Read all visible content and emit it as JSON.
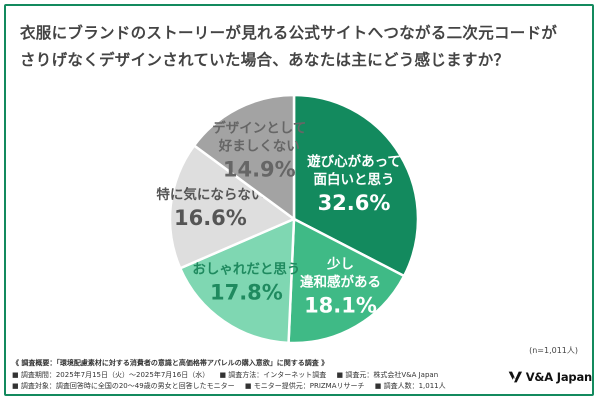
{
  "title": {
    "line1": "衣服にブランドのストーリーが見れる公式サイトへつながる二次元コードが",
    "line2": "さりげなくデザインされていた場合、あなたは主にどう感じますか？"
  },
  "chart_data": {
    "type": "pie",
    "title": "衣服にブランドのストーリーが見れる公式サイトへつながる二次元コードがさりげなくデザインされていた場合、あなたは主にどう感じますか？",
    "unit": "%",
    "slices": [
      {
        "label_lines": [
          "遊び心があって",
          "面白いと思う"
        ],
        "value": 32.6,
        "value_text": "32.6%",
        "color": "#138a5e",
        "label_color": "#ffffff"
      },
      {
        "label_lines": [
          "少し",
          "違和感がある"
        ],
        "value": 18.1,
        "value_text": "18.1%",
        "color": "#3fba86",
        "label_color": "#ffffff"
      },
      {
        "label_lines": [
          "おしゃれだと思う"
        ],
        "value": 17.8,
        "value_text": "17.8%",
        "color": "#7fd7b2",
        "label_color": "#1f8a5f"
      },
      {
        "label_lines": [
          "特に気にならない"
        ],
        "value": 16.6,
        "value_text": "16.6%",
        "color": "#dedede",
        "label_color": "#555555"
      },
      {
        "label_lines": [
          "デザインとして",
          "好ましくない"
        ],
        "value": 14.9,
        "value_text": "14.9%",
        "color": "#a3a3a3",
        "label_color": "#666666"
      }
    ]
  },
  "n_label": "(n=1,011人)",
  "survey": {
    "title": "《 調査概要：「環境配慮素材に対する消費者の意識と高価格帯アパレルの購入意欲」に関する調査 》",
    "period": "■ 調査期間：2025年7月15日（火）〜2025年7月16日（水）",
    "method": "■ 調査方法：インターネット調査",
    "org": "■ 調査元：株式会社V&A Japan",
    "target": "■ 調査対象：調査回答時に全国の20〜49歳の男女と回答したモニター",
    "provider": "■ モニター提供元：PRIZMAリサーチ",
    "count": "■ 調査人数：1,011人"
  },
  "logo": {
    "text": "V&A Japan"
  }
}
